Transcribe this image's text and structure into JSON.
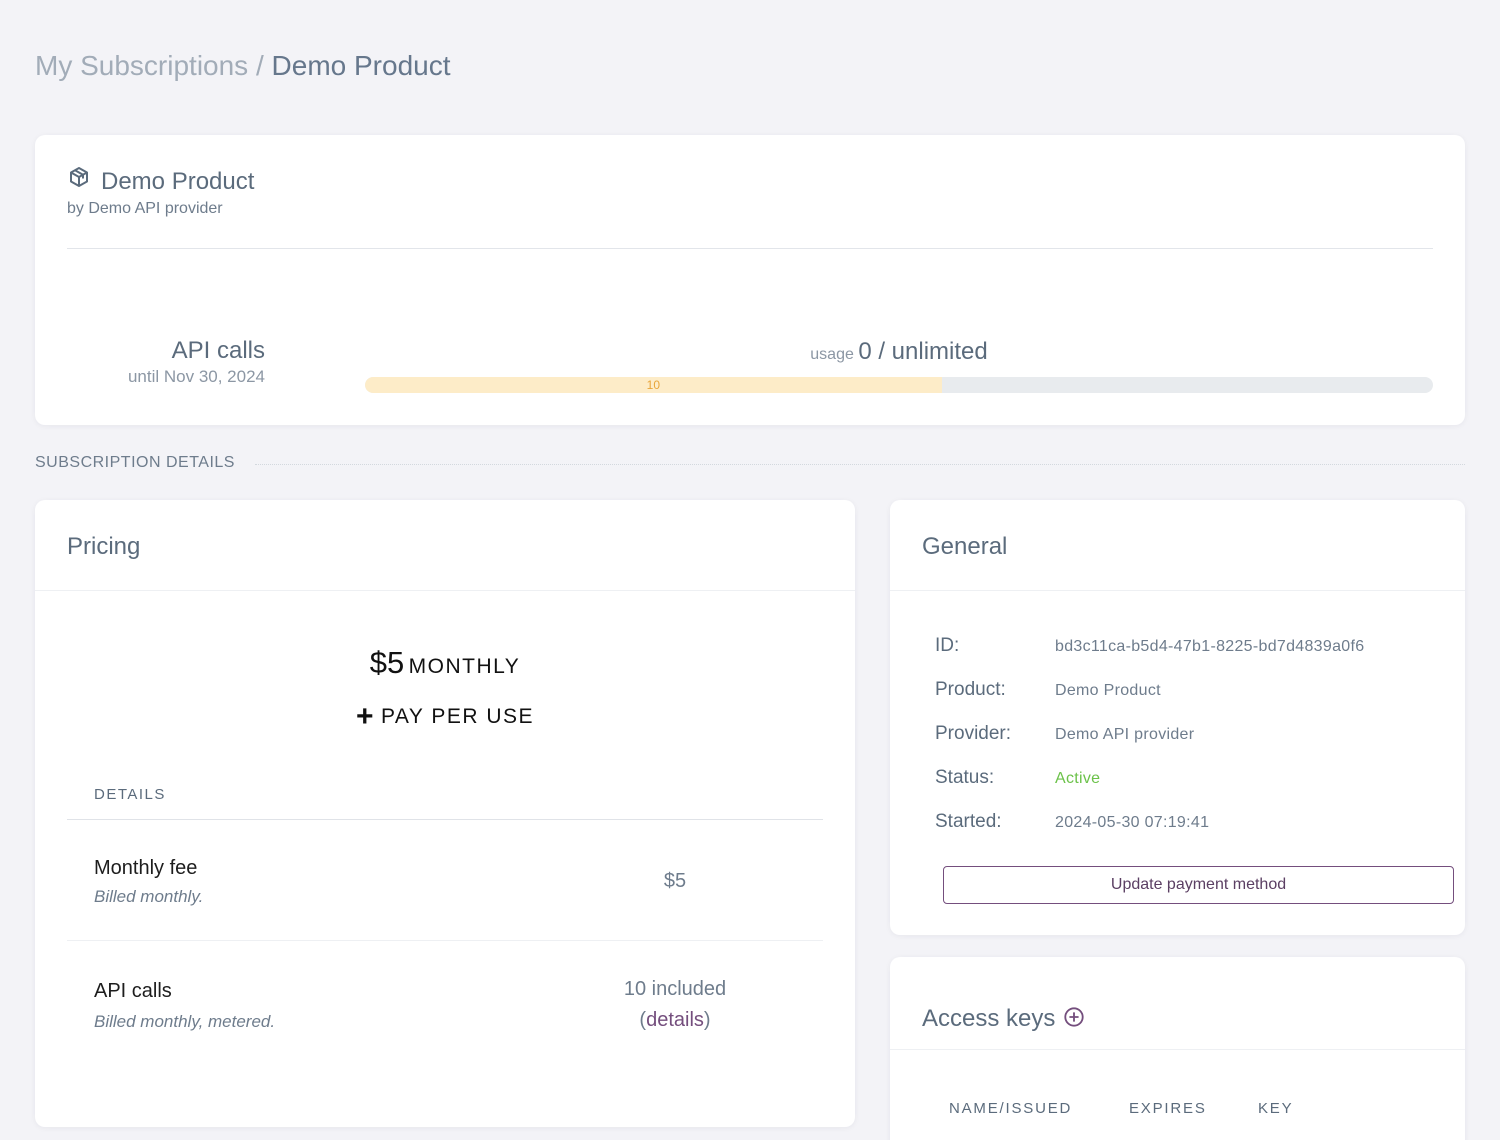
{
  "breadcrumb": {
    "parent": "My Subscriptions",
    "separator": " / ",
    "current": "Demo Product"
  },
  "product": {
    "icon": "package-icon",
    "title": "Demo Product",
    "provider": "by Demo API provider"
  },
  "meter": {
    "name": "API calls",
    "until": "until Nov 30, 2024",
    "usage_label": "usage",
    "usage_value": "0 / unlimited",
    "bar_label": "10",
    "included_fraction": 0.54,
    "colors": {
      "included": "#fdecc8",
      "track": "#e8ebee",
      "label": "#e8a53a"
    }
  },
  "section": {
    "title": "SUBSCRIPTION DETAILS"
  },
  "pricing": {
    "title": "Pricing",
    "amount": "$5",
    "period": "MONTHLY",
    "plus_sign": "+",
    "extra": "PAY PER USE",
    "details_label": "DETAILS",
    "rows": [
      {
        "name": "Monthly fee",
        "desc": "Billed monthly.",
        "value": "$5"
      },
      {
        "name": "API calls",
        "desc": "Billed monthly, metered.",
        "value": "10 included",
        "link_prefix": "(",
        "link": "details",
        "link_suffix": ")"
      }
    ]
  },
  "general": {
    "title": "General",
    "fields": [
      {
        "key": "ID:",
        "value": "bd3c11ca-b5d4-47b1-8225-bd7d4839a0f6"
      },
      {
        "key": "Product:",
        "value": "Demo Product"
      },
      {
        "key": "Provider:",
        "value": "Demo API provider"
      },
      {
        "key": "Status:",
        "value": "Active"
      },
      {
        "key": "Started:",
        "value": "2024-05-30 07:19:41"
      }
    ],
    "button": "Update payment method",
    "status_color": "#6cc24a"
  },
  "access_keys": {
    "title": "Access keys",
    "add_icon": "plus-circle-icon",
    "columns": [
      "NAME/ISSUED",
      "EXPIRES",
      "KEY"
    ]
  },
  "colors": {
    "background": "#f3f3f7",
    "accent": "#744e7d",
    "text": "#5b6b7c"
  }
}
